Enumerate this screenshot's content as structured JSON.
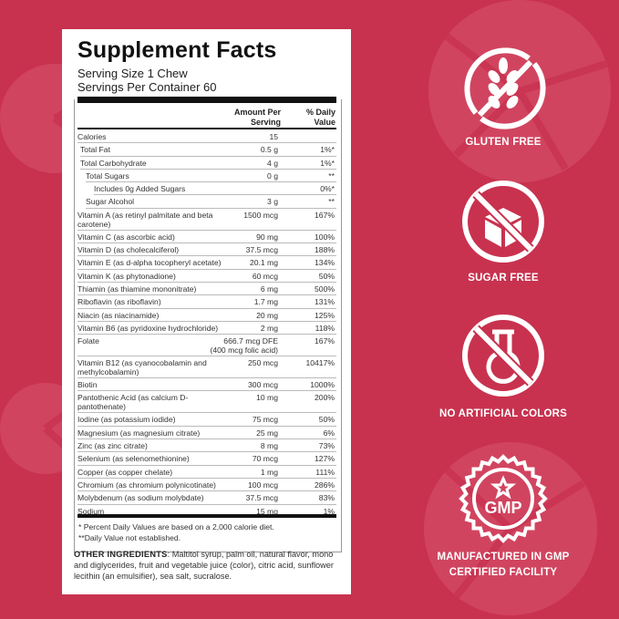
{
  "colors": {
    "background": "#c8324f",
    "panel": "#ffffff",
    "icon": "#ffffff"
  },
  "facts": {
    "title": "Supplement Facts",
    "serving_size": "Serving Size 1 Chew",
    "servings_per_container": "Servings Per Container 60",
    "col_amount": "Amount Per\nServing",
    "col_dv": "% Daily\nValue",
    "rows": [
      {
        "name": "Calories",
        "amount": "15",
        "dv": "",
        "indent": 0
      },
      {
        "name": "Total Fat",
        "amount": "0.5 g",
        "dv": "1%*",
        "indent": 1
      },
      {
        "name": "Total Carbohydrate",
        "amount": "4 g",
        "dv": "1%*",
        "indent": 1
      },
      {
        "name": "Total Sugars",
        "amount": "0 g",
        "dv": "**",
        "indent": 2
      },
      {
        "name": "Includes 0g Added Sugars",
        "amount": "",
        "dv": "0%*",
        "indent": 3
      },
      {
        "name": "Sugar Alcohol",
        "amount": "3 g",
        "dv": "**",
        "indent": 2
      },
      {
        "name": "Vitamin A (as retinyl palmitate and beta carotene)",
        "amount": "1500 mcg",
        "dv": "167%",
        "indent": 0
      },
      {
        "name": "Vitamin C (as ascorbic acid)",
        "amount": "90 mg",
        "dv": "100%",
        "indent": 0
      },
      {
        "name": "Vitamin D (as cholecalciferol)",
        "amount": "37.5 mcg",
        "dv": "188%",
        "indent": 0
      },
      {
        "name": "Vitamin E (as d-alpha tocopheryl acetate)",
        "amount": "20.1 mg",
        "dv": "134%",
        "indent": 0
      },
      {
        "name": "Vitamin K (as phytonadione)",
        "amount": "60 mcg",
        "dv": "50%",
        "indent": 0
      },
      {
        "name": "Thiamin (as thiamine mononitrate)",
        "amount": "6 mg",
        "dv": "500%",
        "indent": 0
      },
      {
        "name": "Riboflavin (as riboflavin)",
        "amount": "1.7 mg",
        "dv": "131%",
        "indent": 0
      },
      {
        "name": "Niacin (as niacinamide)",
        "amount": "20 mg",
        "dv": "125%",
        "indent": 0
      },
      {
        "name": "Vitamin B6 (as pyridoxine hydrochloride)",
        "amount": "2 mg",
        "dv": "118%",
        "indent": 0
      },
      {
        "name": "Folate",
        "amount": "666.7 mcg DFE\n(400 mcg folic acid)",
        "dv": "167%",
        "indent": 0
      },
      {
        "name": "Vitamin B12 (as cyanocobalamin and methylcobalamin)",
        "amount": "250 mcg",
        "dv": "10417%",
        "indent": 0
      },
      {
        "name": "Biotin",
        "amount": "300 mcg",
        "dv": "1000%",
        "indent": 0
      },
      {
        "name": "Pantothenic Acid (as calcium D-pantothenate)",
        "amount": "10 mg",
        "dv": "200%",
        "indent": 0
      },
      {
        "name": "Iodine (as potassium iodide)",
        "amount": "75 mcg",
        "dv": "50%",
        "indent": 0
      },
      {
        "name": "Magnesium (as magnesium citrate)",
        "amount": "25 mg",
        "dv": "6%",
        "indent": 0
      },
      {
        "name": "Zinc (as zinc citrate)",
        "amount": "8 mg",
        "dv": "73%",
        "indent": 0
      },
      {
        "name": "Selenium (as selenomethionine)",
        "amount": "70 mcg",
        "dv": "127%",
        "indent": 0
      },
      {
        "name": "Copper (as copper chelate)",
        "amount": "1 mg",
        "dv": "111%",
        "indent": 0
      },
      {
        "name": "Chromium (as chromium polynicotinate)",
        "amount": "100 mcg",
        "dv": "286%",
        "indent": 0
      },
      {
        "name": "Molybdenum (as sodium molybdate)",
        "amount": "37.5 mcg",
        "dv": "83%",
        "indent": 0
      },
      {
        "name": "Sodium",
        "amount": "15 mg",
        "dv": "1%",
        "indent": 0
      }
    ],
    "footnote1": "* Percent Daily Values are based on a 2,000 calorie diet.",
    "footnote2": "**Daily Value not established.",
    "other_label": "OTHER INGREDIENTS",
    "other_text": ": Maltitol syrup, palm oil, natural flavor, mono and diglycerides, fruit and vegetable juice (color), citric acid, sunflower lecithin (an emulsifier), sea salt, sucralose."
  },
  "badges": [
    {
      "icon": "no-wheat-icon",
      "label": "GLUTEN FREE"
    },
    {
      "icon": "no-sugar-cube-icon",
      "label": "SUGAR FREE"
    },
    {
      "icon": "no-flask-icon",
      "label": "NO ARTIFICIAL COLORS"
    },
    {
      "icon": "gmp-seal-icon",
      "label": "MANUFACTURED IN GMP\nCERTIFIED FACILITY",
      "seal_text": "GMP"
    }
  ]
}
